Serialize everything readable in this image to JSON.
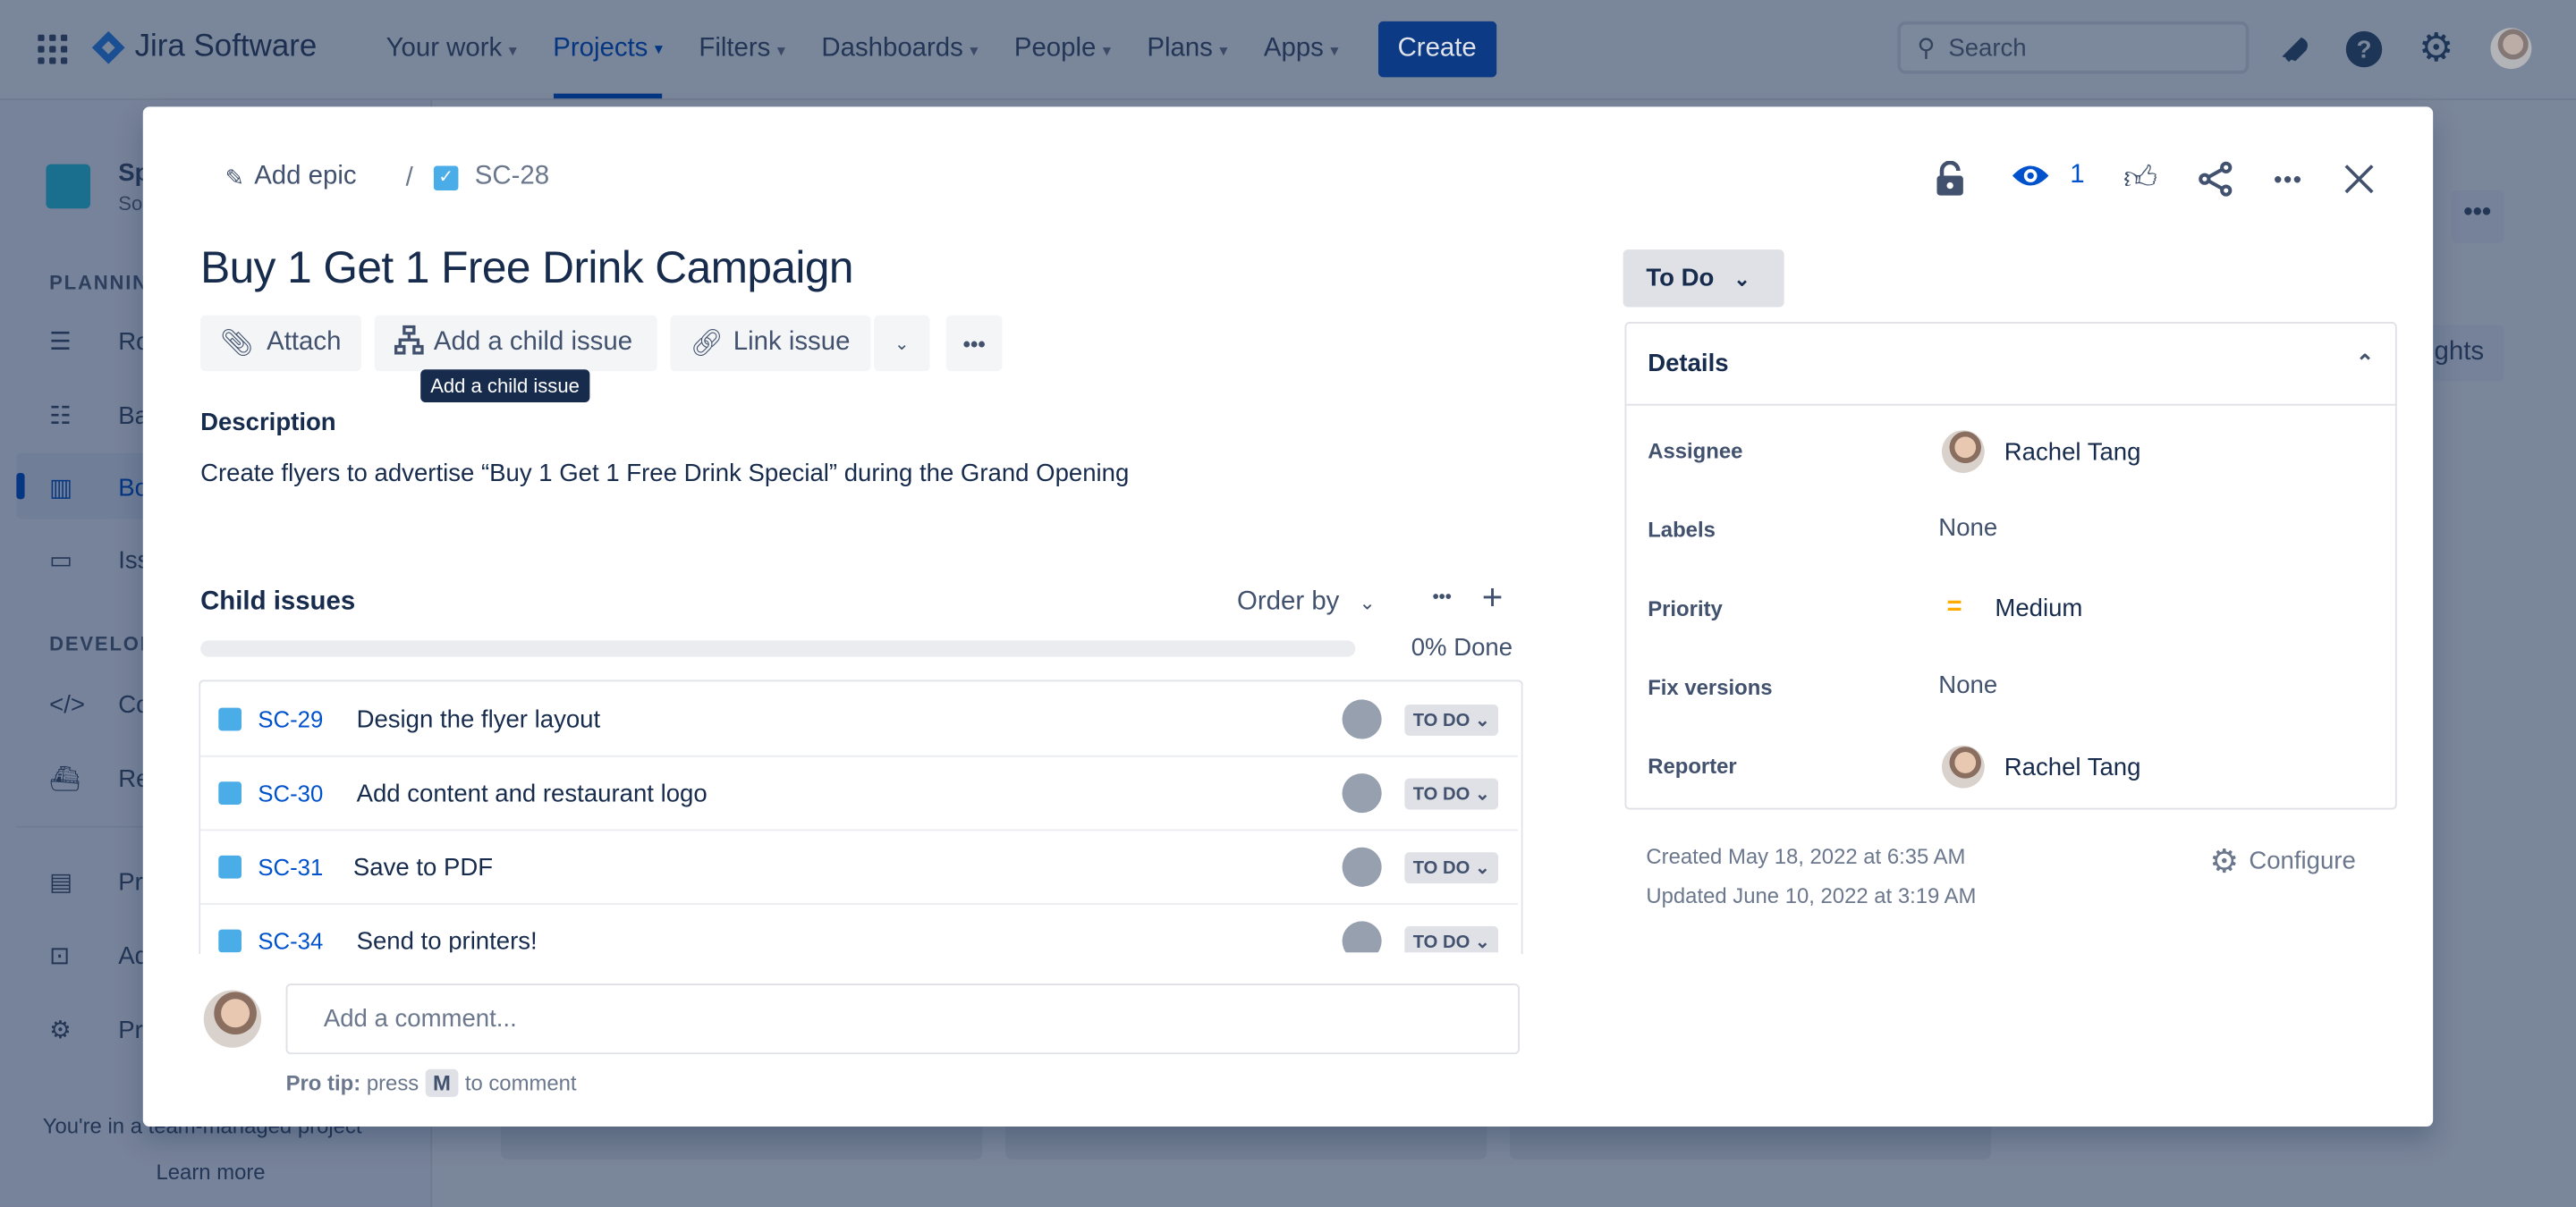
{
  "topnav": {
    "app_name": "Jira Software",
    "items": [
      "Your work",
      "Projects",
      "Filters",
      "Dashboards",
      "People",
      "Plans",
      "Apps"
    ],
    "active": "Projects",
    "create_label": "Create",
    "search_placeholder": "Search"
  },
  "sidebar": {
    "project_initials": "Sp",
    "project_sub": "So",
    "sections": [
      "PLANNING",
      "DEVELOPMENT"
    ],
    "items": [
      "Ro",
      "Ba",
      "Bo",
      "Iss",
      "Co",
      "Re",
      "Pr",
      "Ad",
      "Pr"
    ],
    "footer_text": "You're in a team-managed project",
    "learn_more": "Learn more"
  },
  "background": {
    "insights_label": "ghts"
  },
  "modal": {
    "breadcrumb": {
      "add_epic": "Add epic",
      "separator": "/",
      "issue_key": "SC-28"
    },
    "watch_count": "1",
    "title": "Buy 1 Get 1 Free Drink Campaign",
    "actions": {
      "attach": "Attach",
      "add_child": "Add a child issue",
      "link_issue": "Link issue"
    },
    "tooltip": "Add a child issue",
    "description_label": "Description",
    "description": "Create flyers to advertise “Buy 1 Get 1 Free Drink Special” during the Grand Opening",
    "child_issues": {
      "label": "Child issues",
      "order_by": "Order by",
      "progress_percent": 0,
      "progress_text": "0% Done",
      "items": [
        {
          "key": "SC-29",
          "summary": "Design the flyer layout",
          "status": "TO DO"
        },
        {
          "key": "SC-30",
          "summary": "Add content and restaurant logo",
          "status": "TO DO"
        },
        {
          "key": "SC-31",
          "summary": "Save to PDF",
          "status": "TO DO"
        },
        {
          "key": "SC-34",
          "summary": "Send to printers!",
          "status": "TO DO"
        }
      ]
    },
    "comment": {
      "placeholder": "Add a comment...",
      "pro_tip_prefix": "Pro tip:",
      "pro_tip_press": "press",
      "pro_tip_key": "M",
      "pro_tip_suffix": "to comment"
    },
    "status_button": "To Do",
    "details": {
      "header": "Details",
      "fields": [
        {
          "label": "Assignee",
          "value": "Rachel Tang"
        },
        {
          "label": "Labels",
          "value": "None"
        },
        {
          "label": "Priority",
          "value": "Medium"
        },
        {
          "label": "Fix versions",
          "value": "None"
        },
        {
          "label": "Reporter",
          "value": "Rachel Tang"
        }
      ]
    },
    "created": "Created May 18, 2022 at 6:35 AM",
    "updated": "Updated June 10, 2022 at 3:19 AM",
    "configure": "Configure",
    "colors": {
      "accent": "#0052cc",
      "priority_medium": "#ffab00",
      "primary_button": "#0052cc"
    }
  }
}
